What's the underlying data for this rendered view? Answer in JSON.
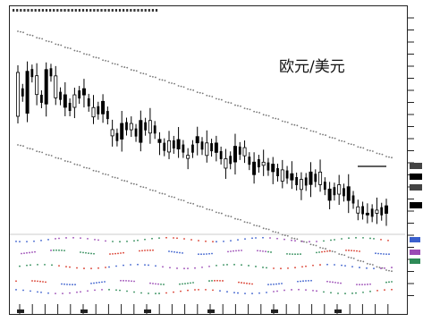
{
  "window": {
    "title": "欧元/美元"
  },
  "chart_data": {
    "type": "candlestick",
    "title": "欧元/美元",
    "grid": false,
    "legend": "none",
    "price_series": {
      "name": "",
      "points": [
        [
          -0.15,
          0.55
        ],
        [
          -0.05,
          0.62
        ],
        [
          0.6,
          0.3
        ],
        [
          0.2,
          0.75
        ],
        [
          0.7,
          0.35
        ],
        [
          0.45,
          0.25
        ],
        [
          0.3,
          0.5
        ],
        [
          0.55,
          0.65
        ],
        [
          0.25,
          0.4
        ],
        [
          0.35,
          0.55
        ],
        [
          0.15,
          0.05
        ],
        [
          0.05,
          0.3
        ],
        [
          0.25,
          0.35
        ],
        [
          0.1,
          0.45
        ],
        [
          0.3,
          0.5
        ],
        [
          0.25,
          0.2
        ],
        [
          0.1,
          0.28
        ],
        [
          0.2,
          0.35
        ],
        [
          0.1,
          0.15
        ],
        [
          0.4,
          0.5
        ],
        [
          0.25,
          0.45
        ],
        [
          0.35,
          0.5
        ],
        [
          0.15,
          0.3
        ],
        [
          0.3,
          0.55
        ],
        [
          0.45,
          0.58
        ],
        [
          0.2,
          0.4
        ],
        [
          0.4,
          0.45
        ],
        [
          0.35,
          0.47
        ],
        [
          0.25,
          0.43
        ],
        [
          0.32,
          0.42
        ],
        [
          0.22,
          0.38
        ],
        [
          0.35,
          0.55
        ],
        [
          0.4,
          0.6
        ],
        [
          0.2,
          0.38
        ],
        [
          0.35,
          0.5
        ],
        [
          0.3,
          0.52
        ],
        [
          0.15,
          0.25
        ],
        [
          0.18,
          0.2
        ],
        [
          0.25,
          0.3
        ],
        [
          0.3,
          0.42
        ]
      ]
    },
    "colors": {
      "frame": "#222222",
      "candle": "#000000",
      "band_upper": "#777777",
      "band_lower": "#777777",
      "indicator_blue": "#3a5fcd",
      "indicator_green": "#2e8b57",
      "indicator_red": "#d93a2b",
      "indicator_purple": "#9b4ab5"
    }
  }
}
